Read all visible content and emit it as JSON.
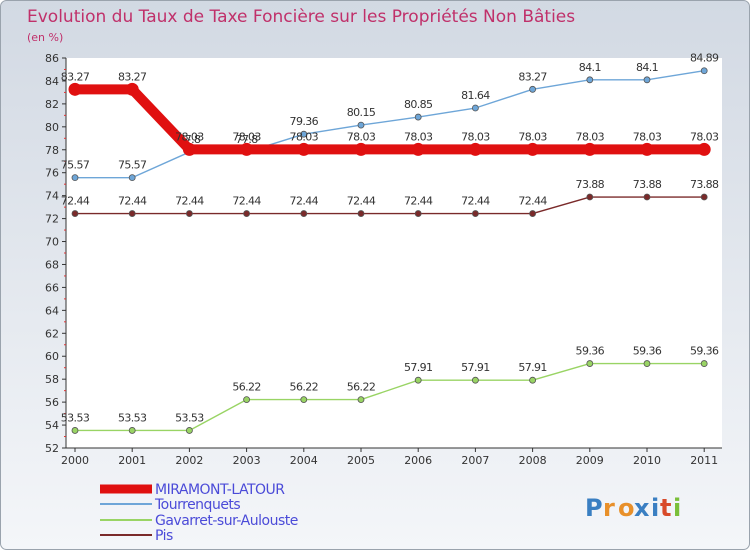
{
  "chart_data": {
    "type": "line",
    "title": "Evolution du Taux de Taxe Foncière sur les Propriétés Non Bâties",
    "subtitle": "(en %)",
    "x": [
      "2000",
      "2001",
      "2002",
      "2003",
      "2004",
      "2005",
      "2006",
      "2007",
      "2008",
      "2009",
      "2010",
      "2011"
    ],
    "ylim": [
      52,
      86
    ],
    "yticks": [
      52,
      54,
      56,
      58,
      60,
      62,
      64,
      66,
      68,
      70,
      72,
      74,
      76,
      78,
      80,
      82,
      84,
      86
    ],
    "series": [
      {
        "name": "Pis",
        "color": "#7a2a2a",
        "values": [
          72.44,
          72.44,
          72.44,
          72.44,
          72.44,
          72.44,
          72.44,
          72.44,
          72.44,
          73.88,
          73.88,
          73.88
        ],
        "labels": [
          "72.44",
          "72.44",
          "72.44",
          "72.44",
          "72.44",
          "72.44",
          "72.44",
          "72.44",
          "72.44",
          "73.88",
          "73.88",
          "73.88"
        ]
      },
      {
        "name": "Gavarret-sur-Aulouste",
        "color": "#99d464",
        "values": [
          53.53,
          53.53,
          53.53,
          56.22,
          56.22,
          56.22,
          57.91,
          57.91,
          57.91,
          59.36,
          59.36,
          59.36
        ],
        "labels": [
          "53.53",
          "53.53",
          "53.53",
          "56.22",
          "56.22",
          "56.22",
          "57.91",
          "57.91",
          "57.91",
          "59.36",
          "59.36",
          "59.36"
        ]
      },
      {
        "name": "Tourrenquets",
        "color": "#6ea6d8",
        "values": [
          75.57,
          75.57,
          77.8,
          77.8,
          79.36,
          80.15,
          80.85,
          81.64,
          83.27,
          84.1,
          84.1,
          84.89
        ],
        "labels": [
          "75.57",
          "75.57",
          "77.8",
          "77.8",
          "79.36",
          "80.15",
          "80.85",
          "81.64",
          "83.27",
          "84.1",
          "84.1",
          "84.89"
        ]
      },
      {
        "name": "MIRAMONT-LATOUR",
        "color": "#e01010",
        "values": [
          83.27,
          83.27,
          78.03,
          78.03,
          78.03,
          78.03,
          78.03,
          78.03,
          78.03,
          78.03,
          78.03,
          78.03
        ],
        "labels": [
          "83.27",
          "83.27",
          "78.03",
          "78.03",
          "78.03",
          "78.03",
          "78.03",
          "78.03",
          "78.03",
          "78.03",
          "78.03",
          "78.03"
        ]
      }
    ],
    "legend": [
      "MIRAMONT-LATOUR",
      "Tourrenquets",
      "Gavarret-sur-Aulouste",
      "Pis"
    ]
  },
  "brand": {
    "text": "Proxiti",
    "letters": [
      "P",
      "r",
      "o",
      "x",
      "i",
      "t",
      "i"
    ]
  }
}
